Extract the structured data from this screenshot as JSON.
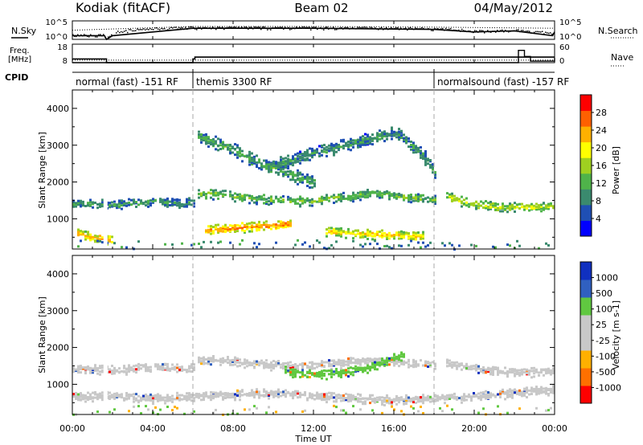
{
  "header": {
    "station": "Kodiak (fitACF)",
    "beam": "Beam 02",
    "date": "04/May/2012"
  },
  "panels": {
    "nsky_label": "N.Sky",
    "nsky_ticks": [
      "10^5",
      "10^0"
    ],
    "nsearch_label": "N.Search",
    "nsearch_ticks": [
      "10^5",
      "10^0"
    ],
    "freq_label_line1": "Freq.",
    "freq_label_line2": "[MHz]",
    "freq_ticks": [
      "18",
      "8"
    ],
    "nave_label": "Nave",
    "nave_ticks": [
      "60",
      "0"
    ],
    "cpid_label": "CPID"
  },
  "cpid_segments": [
    {
      "label": "normal (fast) -151 RF",
      "start_hr": 0,
      "end_hr": 6
    },
    {
      "label": "themis 3300 RF",
      "start_hr": 6,
      "end_hr": 18
    },
    {
      "label": "normalsound (fast) -157 RF",
      "start_hr": 18,
      "end_hr": 24
    }
  ],
  "axes": {
    "ylabel": "Slant Range [km]",
    "xlabel": "Time UT",
    "xticks": [
      "00:00",
      "04:00",
      "08:00",
      "12:00",
      "16:00",
      "20:00",
      "00:00"
    ],
    "xtick_hours": [
      0,
      4,
      8,
      12,
      16,
      20,
      24
    ],
    "yticks": [
      "1000",
      "2000",
      "3000",
      "4000"
    ],
    "ytick_values": [
      1000,
      2000,
      3000,
      4000
    ],
    "ylim": [
      180,
      4500
    ],
    "xlim": [
      0,
      24
    ]
  },
  "colors": {
    "power_scale": [
      "#0000ff",
      "#1f4fb4",
      "#3a8a6e",
      "#4fb34a",
      "#9fd020",
      "#ffff00",
      "#ffb000",
      "#ff6000",
      "#ff0000"
    ],
    "velocity_scale": [
      "#ff0000",
      "#ff7000",
      "#ffb000",
      "#c8c8c8",
      "#c8c8c8",
      "#60c840",
      "#3060c0",
      "#1030c0"
    ]
  },
  "chart_data": [
    {
      "type": "heatmap",
      "title": "Power",
      "colorbar_label": "Power [dB]",
      "colorbar_ticks": [
        "4",
        "8",
        "12",
        "16",
        "20",
        "24",
        "28"
      ],
      "xlabel": "",
      "ylabel": "Slant Range [km]",
      "xlim": [
        0,
        24
      ],
      "ylim": [
        180,
        4500
      ],
      "features": [
        {
          "name": "band",
          "t": [
            0,
            2,
            4,
            5.5,
            6
          ],
          "r": [
            1450,
            1420,
            1500,
            1450,
            1500
          ],
          "level": 10
        },
        {
          "name": "band",
          "t": [
            6.2,
            7,
            8,
            9,
            10,
            11,
            12,
            13,
            14,
            15,
            16,
            17,
            18
          ],
          "r": [
            1700,
            1700,
            1650,
            1580,
            1550,
            1520,
            1520,
            1600,
            1650,
            1750,
            1650,
            1600,
            1550
          ],
          "level": 14
        },
        {
          "name": "band",
          "t": [
            18.5,
            19,
            20,
            21,
            22,
            23,
            24
          ],
          "r": [
            1700,
            1550,
            1450,
            1350,
            1350,
            1350,
            1400
          ],
          "level": 18
        },
        {
          "name": "band",
          "t": [
            6.5,
            7,
            8,
            9,
            10,
            10.8
          ],
          "r": [
            700,
            750,
            780,
            820,
            860,
            880
          ],
          "level": 26
        },
        {
          "name": "band",
          "t": [
            12.5,
            13.5,
            14.5,
            15.5,
            16.5,
            17.5
          ],
          "r": [
            700,
            650,
            620,
            600,
            580,
            560
          ],
          "level": 22
        },
        {
          "name": "band",
          "t": [
            0.2,
            0.8,
            1.4,
            2
          ],
          "r": [
            650,
            550,
            500,
            430
          ],
          "level": 24
        },
        {
          "name": "arch",
          "t": [
            9.5,
            11,
            12.5,
            14,
            15.5,
            16,
            16.5,
            17.5,
            18
          ],
          "r": [
            2400,
            2650,
            2900,
            3100,
            3300,
            3350,
            3200,
            2700,
            2300
          ],
          "level": 10
        },
        {
          "name": "arch",
          "t": [
            6.2,
            7,
            8,
            9,
            10,
            11,
            12
          ],
          "r": [
            3300,
            3100,
            2900,
            2600,
            2400,
            2200,
            2000
          ],
          "level": 12
        }
      ]
    },
    {
      "type": "heatmap",
      "title": "Velocity",
      "colorbar_label": "Velocity [m s-1]",
      "colorbar_ticks": [
        "-1000",
        "-500",
        "-100",
        "-25",
        "25",
        "100",
        "500",
        "1000"
      ],
      "xlabel": "Time UT",
      "ylabel": "Slant Range [km]",
      "xlim": [
        0,
        24
      ],
      "ylim": [
        180,
        4500
      ],
      "features": [
        {
          "name": "band",
          "t": [
            0,
            2,
            4,
            5.5,
            6
          ],
          "r": [
            1450,
            1420,
            1500,
            1450,
            1500
          ],
          "velocity": 0
        },
        {
          "name": "band",
          "t": [
            6.2,
            8,
            10,
            12,
            14,
            16,
            18
          ],
          "r": [
            1700,
            1650,
            1550,
            1520,
            1650,
            1650,
            1550
          ],
          "velocity": 0
        },
        {
          "name": "band",
          "t": [
            10.5,
            11.5,
            12.5,
            13.5,
            14.5,
            15.5,
            16.5
          ],
          "r": [
            1400,
            1300,
            1300,
            1350,
            1450,
            1650,
            1850
          ],
          "velocity": 120
        },
        {
          "name": "band",
          "t": [
            18.5,
            20,
            22,
            24
          ],
          "r": [
            1600,
            1450,
            1350,
            1400
          ],
          "velocity": 0
        },
        {
          "name": "band",
          "t": [
            0,
            2,
            4,
            6,
            8,
            10,
            12,
            14,
            16,
            18,
            20,
            22,
            24
          ],
          "r": [
            700,
            700,
            650,
            700,
            750,
            800,
            700,
            650,
            600,
            650,
            700,
            800,
            900
          ],
          "velocity": 0
        }
      ]
    },
    {
      "type": "line",
      "title": "N.Sky / N.Search",
      "series": [
        {
          "name": "N.Sky",
          "x": [
            0,
            1.6,
            1.7,
            2,
            6,
            12,
            18,
            20,
            22,
            23.9,
            24
          ],
          "y": [
            10,
            10,
            1,
            10,
            1000,
            1000,
            500,
            100,
            200,
            10,
            100
          ]
        },
        {
          "name": "N.Search",
          "x": [
            0,
            6,
            12,
            18,
            24
          ],
          "y": [
            300,
            3000,
            3000,
            2000,
            1000
          ]
        }
      ]
    },
    {
      "type": "line",
      "title": "Freq / Nave",
      "series": [
        {
          "name": "Freq",
          "x": [
            0,
            1.6,
            1.7,
            6,
            6.1,
            18,
            19,
            20,
            24
          ],
          "y": [
            10,
            10,
            8,
            10,
            11,
            11,
            11,
            11,
            11
          ]
        },
        {
          "name": "Nave",
          "x": [
            0,
            22,
            22.2,
            22.5,
            22.8,
            23.5,
            24
          ],
          "y": [
            0,
            0,
            40,
            20,
            5,
            5,
            15
          ]
        }
      ]
    }
  ]
}
